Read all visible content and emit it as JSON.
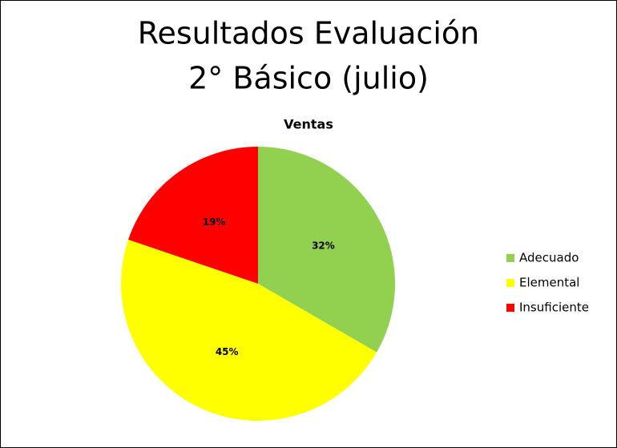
{
  "chart_data": {
    "type": "pie",
    "title": [
      "Resultados Evaluación",
      "2° Básico (julio)"
    ],
    "subtitle": "Ventas",
    "categories": [
      "Adecuado",
      "Elemental",
      "Insuficiente"
    ],
    "values": [
      32,
      45,
      19
    ],
    "value_labels": [
      "32%",
      "45%",
      "19%"
    ],
    "colors": [
      "#92d050",
      "#ffff00",
      "#ff0000"
    ],
    "legend": "right"
  }
}
